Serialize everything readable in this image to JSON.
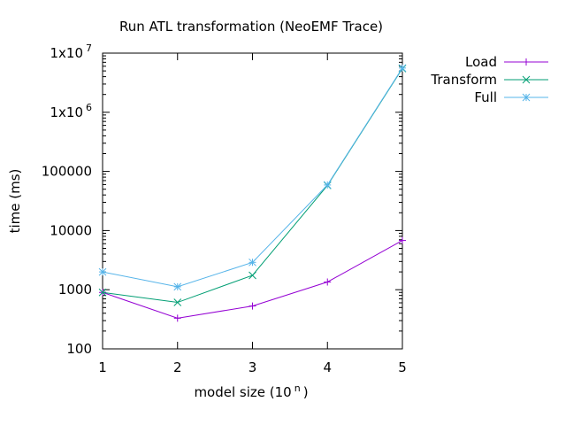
{
  "chart_data": {
    "type": "line",
    "title": "Run ATL transformation (NeoEMF Trace)",
    "xlabel": "model size (10 ^n )",
    "xlabel_base": "model size (10",
    "xlabel_exp": "n",
    "xlabel_close": ")",
    "ylabel": "time (ms)",
    "y_scale": "log",
    "xlim": [
      1,
      5
    ],
    "ylim": [
      100,
      10000000
    ],
    "x_ticks": [
      {
        "value": 1,
        "label": "1"
      },
      {
        "value": 2,
        "label": "2"
      },
      {
        "value": 3,
        "label": "3"
      },
      {
        "value": 4,
        "label": "4"
      },
      {
        "value": 5,
        "label": "5"
      }
    ],
    "y_ticks": [
      {
        "value": 100,
        "label": "100"
      },
      {
        "value": 1000,
        "label": "1000"
      },
      {
        "value": 10000,
        "label": "10000"
      },
      {
        "value": 100000,
        "label": "100000"
      },
      {
        "value": 1000000,
        "label": "1x10",
        "exp": "6"
      },
      {
        "value": 10000000,
        "label": "1x10",
        "exp": "7"
      }
    ],
    "legend_position": "outside-top-right",
    "grid": false,
    "series": [
      {
        "name": "Load",
        "color": "#9400d3",
        "marker": "plus",
        "x": [
          1,
          2,
          3,
          4,
          5
        ],
        "y": [
          900,
          330,
          530,
          1350,
          6800
        ]
      },
      {
        "name": "Transform",
        "color": "#009e73",
        "marker": "cross",
        "x": [
          1,
          2,
          3,
          4,
          5
        ],
        "y": [
          900,
          610,
          1750,
          58000,
          5500000
        ]
      },
      {
        "name": "Full",
        "color": "#56b4e9",
        "marker": "star",
        "x": [
          1,
          2,
          3,
          4,
          5
        ],
        "y": [
          2000,
          1120,
          2900,
          59000,
          5600000
        ]
      }
    ]
  }
}
